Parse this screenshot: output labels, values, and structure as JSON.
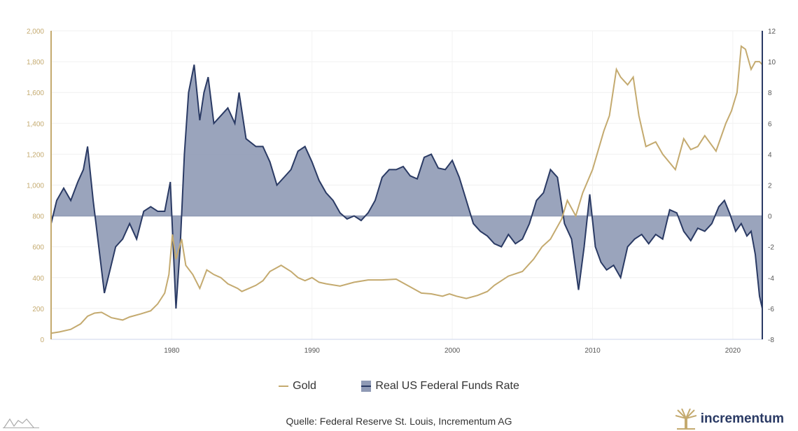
{
  "chart_data": {
    "type": "line",
    "title": "",
    "x_ticks": [
      1980,
      1990,
      2000,
      2010,
      2020
    ],
    "xlim": [
      1971.4,
      2022.1
    ],
    "y_left": {
      "ticks": [
        0,
        200,
        400,
        600,
        800,
        1000,
        1200,
        1400,
        1600,
        1800,
        2000
      ],
      "tick_labels": [
        "0",
        "200",
        "400",
        "600",
        "800",
        "1,000",
        "1,200",
        "1,400",
        "1,600",
        "1,800",
        "2,000"
      ],
      "range": [
        0,
        2000
      ],
      "color": "#c4aa6f"
    },
    "y_right": {
      "ticks": [
        -8,
        -6,
        -4,
        -2,
        0,
        2,
        4,
        6,
        8,
        10,
        12
      ],
      "range": [
        -8,
        12
      ],
      "color": "#2a3a64"
    },
    "grid": true,
    "legend_position": "bottom",
    "series": [
      {
        "name": "Gold",
        "axis": "left",
        "type": "line",
        "color": "#c4aa6f",
        "x": [
          1971.4,
          1972,
          1972.8,
          1973.5,
          1974,
          1974.5,
          1975,
          1975.7,
          1976.5,
          1977,
          1977.8,
          1978.5,
          1979,
          1979.5,
          1979.8,
          1980.05,
          1980.3,
          1980.7,
          1981,
          1981.5,
          1982,
          1982.5,
          1983,
          1983.5,
          1984,
          1984.7,
          1985,
          1985.5,
          1986,
          1986.5,
          1987,
          1987.8,
          1988.5,
          1989,
          1989.5,
          1990,
          1990.5,
          1991,
          1992,
          1993,
          1994,
          1995,
          1996,
          1997,
          1997.8,
          1998.5,
          1999.3,
          1999.8,
          2000.3,
          2001,
          2001.8,
          2002.5,
          2003,
          2004,
          2005,
          2005.8,
          2006.4,
          2007,
          2007.8,
          2008.2,
          2008.8,
          2009.3,
          2010,
          2010.8,
          2011.2,
          2011.7,
          2012,
          2012.5,
          2012.9,
          2013.3,
          2013.8,
          2014.5,
          2015,
          2015.9,
          2016.5,
          2017,
          2017.5,
          2018,
          2018.8,
          2019.5,
          2019.9,
          2020.3,
          2020.6,
          2020.9,
          2021.3,
          2021.6,
          2021.9,
          2022.1
        ],
        "y": [
          40,
          48,
          65,
          100,
          150,
          170,
          175,
          140,
          125,
          145,
          165,
          185,
          230,
          300,
          420,
          680,
          520,
          650,
          480,
          420,
          330,
          450,
          420,
          400,
          360,
          330,
          310,
          330,
          350,
          380,
          440,
          480,
          440,
          400,
          380,
          400,
          370,
          360,
          345,
          370,
          385,
          385,
          390,
          340,
          300,
          295,
          280,
          295,
          280,
          265,
          285,
          310,
          350,
          410,
          440,
          520,
          600,
          650,
          780,
          900,
          800,
          950,
          1100,
          1350,
          1450,
          1750,
          1700,
          1650,
          1700,
          1450,
          1250,
          1280,
          1200,
          1100,
          1300,
          1230,
          1250,
          1320,
          1220,
          1400,
          1480,
          1600,
          1900,
          1880,
          1750,
          1800,
          1800,
          1780
        ]
      },
      {
        "name": "Real US Federal Funds Rate",
        "axis": "right",
        "type": "area",
        "color": "#2a3a64",
        "fill": "#8f9ab5",
        "x": [
          1971.4,
          1971.8,
          1972.3,
          1972.8,
          1973.3,
          1973.7,
          1974,
          1974.4,
          1974.8,
          1975.2,
          1975.6,
          1976,
          1976.5,
          1977,
          1977.5,
          1978,
          1978.5,
          1979,
          1979.5,
          1979.9,
          1980.3,
          1980.6,
          1980.9,
          1981.2,
          1981.6,
          1982,
          1982.3,
          1982.6,
          1983,
          1983.5,
          1984,
          1984.5,
          1984.8,
          1985.3,
          1986,
          1986.5,
          1987,
          1987.5,
          1988,
          1988.5,
          1989,
          1989.5,
          1990,
          1990.5,
          1991,
          1991.5,
          1992,
          1992.5,
          1993,
          1993.5,
          1994,
          1994.5,
          1995,
          1995.5,
          1996,
          1996.5,
          1997,
          1997.5,
          1998,
          1998.5,
          1999,
          1999.5,
          2000,
          2000.5,
          2001,
          2001.5,
          2002,
          2002.5,
          2003,
          2003.5,
          2004,
          2004.5,
          2005,
          2005.5,
          2006,
          2006.5,
          2007,
          2007.5,
          2008,
          2008.5,
          2009,
          2009.4,
          2009.8,
          2010.2,
          2010.6,
          2011,
          2011.5,
          2012,
          2012.5,
          2013,
          2013.5,
          2014,
          2014.5,
          2015,
          2015.5,
          2016,
          2016.5,
          2017,
          2017.5,
          2018,
          2018.5,
          2019,
          2019.4,
          2019.8,
          2020.2,
          2020.6,
          2021,
          2021.3,
          2021.6,
          2021.9,
          2022.1
        ],
        "y": [
          -0.5,
          1,
          1.8,
          1,
          2.2,
          3,
          4.5,
          1,
          -2,
          -5,
          -3.5,
          -2,
          -1.5,
          -0.5,
          -1.5,
          0.3,
          0.6,
          0.3,
          0.3,
          2.2,
          -6,
          -2,
          4,
          8,
          9.8,
          6.2,
          8,
          9,
          6,
          6.5,
          7,
          6,
          8,
          5,
          4.5,
          4.5,
          3.5,
          2,
          2.5,
          3,
          4.2,
          4.5,
          3.5,
          2.3,
          1.5,
          1,
          0.2,
          -0.2,
          0,
          -0.3,
          0.2,
          1,
          2.5,
          3,
          3,
          3.2,
          2.6,
          2.4,
          3.8,
          4,
          3.1,
          3,
          3.6,
          2.5,
          1,
          -0.5,
          -1,
          -1.3,
          -1.8,
          -2,
          -1.2,
          -1.8,
          -1.5,
          -0.5,
          1,
          1.5,
          3,
          2.5,
          -0.5,
          -1.5,
          -4.8,
          -2,
          1.4,
          -2,
          -3,
          -3.5,
          -3.2,
          -4,
          -2,
          -1.5,
          -1.2,
          -1.8,
          -1.2,
          -1.5,
          0.4,
          0.2,
          -1,
          -1.6,
          -0.8,
          -1,
          -0.5,
          0.6,
          1,
          0.1,
          -1,
          -0.5,
          -1.3,
          -1,
          -2.5,
          -5.2,
          -6
        ]
      }
    ]
  },
  "legend": {
    "gold": "Gold",
    "rate": "Real US Federal Funds Rate"
  },
  "source": "Quelle: Federal Reserve St. Louis, Incrementum AG",
  "logo": {
    "text": "incrementum"
  }
}
